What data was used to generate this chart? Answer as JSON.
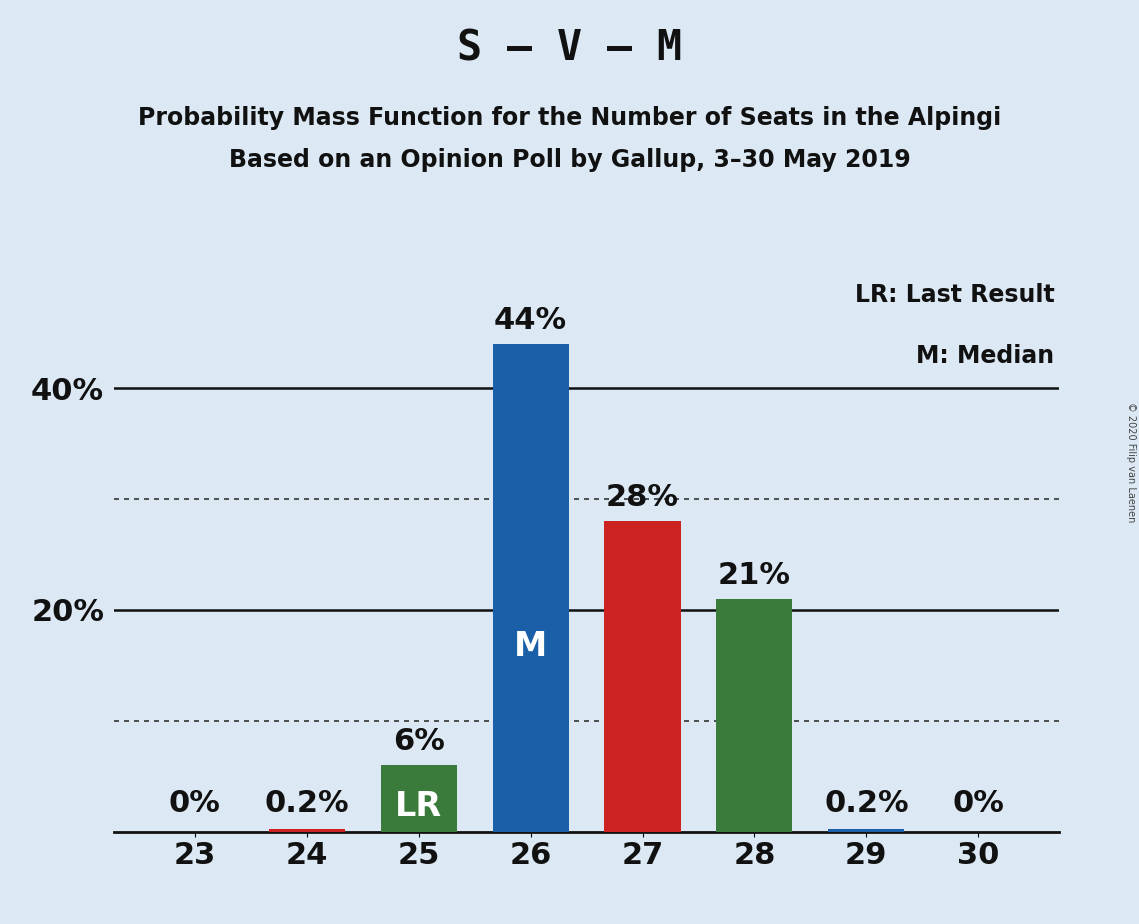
{
  "title": "S – V – M",
  "subtitle1": "Probability Mass Function for the Number of Seats in the Alpingi",
  "subtitle2": "Based on an Opinion Poll by Gallup, 3–30 May 2019",
  "copyright": "© 2020 Filip van Laenen",
  "legend_lr": "LR: Last Result",
  "legend_m": "M: Median",
  "categories": [
    23,
    24,
    25,
    26,
    27,
    28,
    29,
    30
  ],
  "values": [
    0.0,
    0.2,
    6.0,
    44.0,
    28.0,
    21.0,
    0.2,
    0.0
  ],
  "bar_colors": [
    "#cc2222",
    "#cc2222",
    "#3a7a3a",
    "#1a5fa8",
    "#cc2222",
    "#3a7a3a",
    "#1a5fa8",
    "#1a5fa8"
  ],
  "bar_labels": [
    "0%",
    "0.2%",
    "6%",
    "44%",
    "28%",
    "21%",
    "0.2%",
    "0%"
  ],
  "bar_label_inside": [
    "",
    "",
    "LR",
    "M",
    "",
    "",
    "",
    ""
  ],
  "ylim": [
    0,
    50
  ],
  "ylabel_major": [
    20,
    40
  ],
  "dotted_lines": [
    10,
    30
  ],
  "solid_lines": [
    20,
    40
  ],
  "background_color": "#dce9f5",
  "title_fontsize": 30,
  "subtitle_fontsize": 17,
  "bar_label_fontsize": 22,
  "inside_label_fontsize": 24,
  "axis_tick_fontsize": 22,
  "legend_fontsize": 17
}
